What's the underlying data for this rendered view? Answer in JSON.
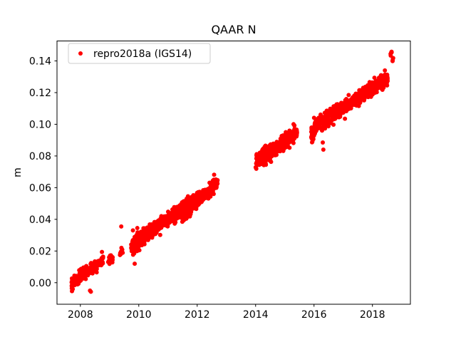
{
  "figure": {
    "background": "#ffffff",
    "axes_edge_color": "#000000",
    "legend_edge_color": "#cccccc",
    "legend_face_color": "#ffffff"
  },
  "chart_data": {
    "type": "scatter",
    "title": "QAAR N",
    "xlabel": "",
    "ylabel": "m",
    "grid": false,
    "xlim": [
      2007.2,
      2019.3
    ],
    "ylim": [
      -0.0136,
      0.1526
    ],
    "xticks": {
      "values": [
        2008,
        2010,
        2012,
        2014,
        2016,
        2018
      ],
      "labels": [
        "2008",
        "2010",
        "2012",
        "2014",
        "2016",
        "2018"
      ]
    },
    "yticks": {
      "values": [
        0.0,
        0.02,
        0.04,
        0.06,
        0.08,
        0.1,
        0.12,
        0.14
      ],
      "labels": [
        "0.00",
        "0.02",
        "0.04",
        "0.06",
        "0.08",
        "0.10",
        "0.12",
        "0.14"
      ]
    },
    "legend": {
      "position": "upper-left",
      "entries": [
        {
          "label": "repro2018a (IGS14)",
          "marker": "dot",
          "color": "#ff0000"
        }
      ]
    },
    "series": [
      {
        "name": "repro2018a (IGS14)",
        "color": "#ff0000",
        "marker_radius_px": 3,
        "trend_m_per_yr": 0.0132,
        "segments": [
          [
            2007.7,
            2008.05,
            -0.001,
            0.005,
            80,
            0.002
          ],
          [
            2008.08,
            2008.3,
            0.005,
            0.008,
            50,
            0.0018
          ],
          [
            2008.33,
            2008.58,
            0.008,
            0.011,
            50,
            0.0018
          ],
          [
            2008.6,
            2008.78,
            0.012,
            0.014,
            35,
            0.0015
          ],
          [
            2008.95,
            2009.12,
            0.0145,
            0.0155,
            25,
            0.0012
          ],
          [
            2009.35,
            2009.48,
            0.019,
            0.021,
            12,
            0.0015
          ],
          [
            2009.74,
            2010.0,
            0.0225,
            0.027,
            70,
            0.0032
          ],
          [
            2010.0,
            2011.0,
            0.027,
            0.04,
            220,
            0.0022
          ],
          [
            2011.0,
            2012.0,
            0.04,
            0.052,
            220,
            0.0022
          ],
          [
            2011.45,
            2011.75,
            0.044,
            0.047,
            60,
            0.0038
          ],
          [
            2012.0,
            2012.7,
            0.052,
            0.0625,
            160,
            0.0022
          ],
          [
            2014.0,
            2014.7,
            0.076,
            0.085,
            160,
            0.0022
          ],
          [
            2014.25,
            2014.55,
            0.08,
            0.083,
            50,
            0.0034
          ],
          [
            2014.7,
            2015.42,
            0.085,
            0.0945,
            160,
            0.0022
          ],
          [
            2015.0,
            2015.35,
            0.091,
            0.094,
            50,
            0.003
          ],
          [
            2015.9,
            2016.08,
            0.093,
            0.099,
            60,
            0.0026
          ],
          [
            2016.12,
            2017.0,
            0.1,
            0.1105,
            200,
            0.0022
          ],
          [
            2017.0,
            2018.0,
            0.1105,
            0.123,
            220,
            0.0022
          ],
          [
            2018.0,
            2018.52,
            0.123,
            0.1295,
            130,
            0.002
          ],
          [
            2018.62,
            2018.66,
            0.1445,
            0.1455,
            5,
            0.0008
          ],
          [
            2018.68,
            2018.72,
            0.141,
            0.142,
            4,
            0.0008
          ]
        ],
        "outliers": [
          [
            2008.33,
            -0.005
          ],
          [
            2008.36,
            -0.0057
          ],
          [
            2009.4,
            0.0355
          ],
          [
            2009.8,
            0.033
          ],
          [
            2009.86,
            0.012
          ],
          [
            2009.95,
            0.0345
          ],
          [
            2010.02,
            0.0205
          ],
          [
            2016.28,
            0.0975
          ],
          [
            2016.3,
            0.0885
          ],
          [
            2016.32,
            0.084
          ]
        ]
      }
    ]
  }
}
